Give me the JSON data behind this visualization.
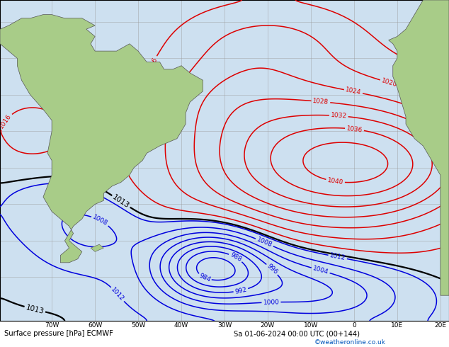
{
  "title_bottom": "Surface pressure [hPa] ECMWF",
  "date_str": "Sa 01-06-2024 00:00 UTC (00+144)",
  "credit": "©weatheronline.co.uk",
  "ocean_color": "#cde0f0",
  "land_color": "#a8cc88",
  "grid_color": "#999999",
  "fig_width": 6.34,
  "fig_height": 4.9,
  "lon_min": -82,
  "lon_max": 22,
  "lat_min": -72,
  "lat_max": 16,
  "contour_low_color": "#0000dd",
  "contour_mid_color": "#000000",
  "contour_high_color": "#dd0000",
  "contour_lw": 1.1,
  "contour_mid_lw": 1.6
}
